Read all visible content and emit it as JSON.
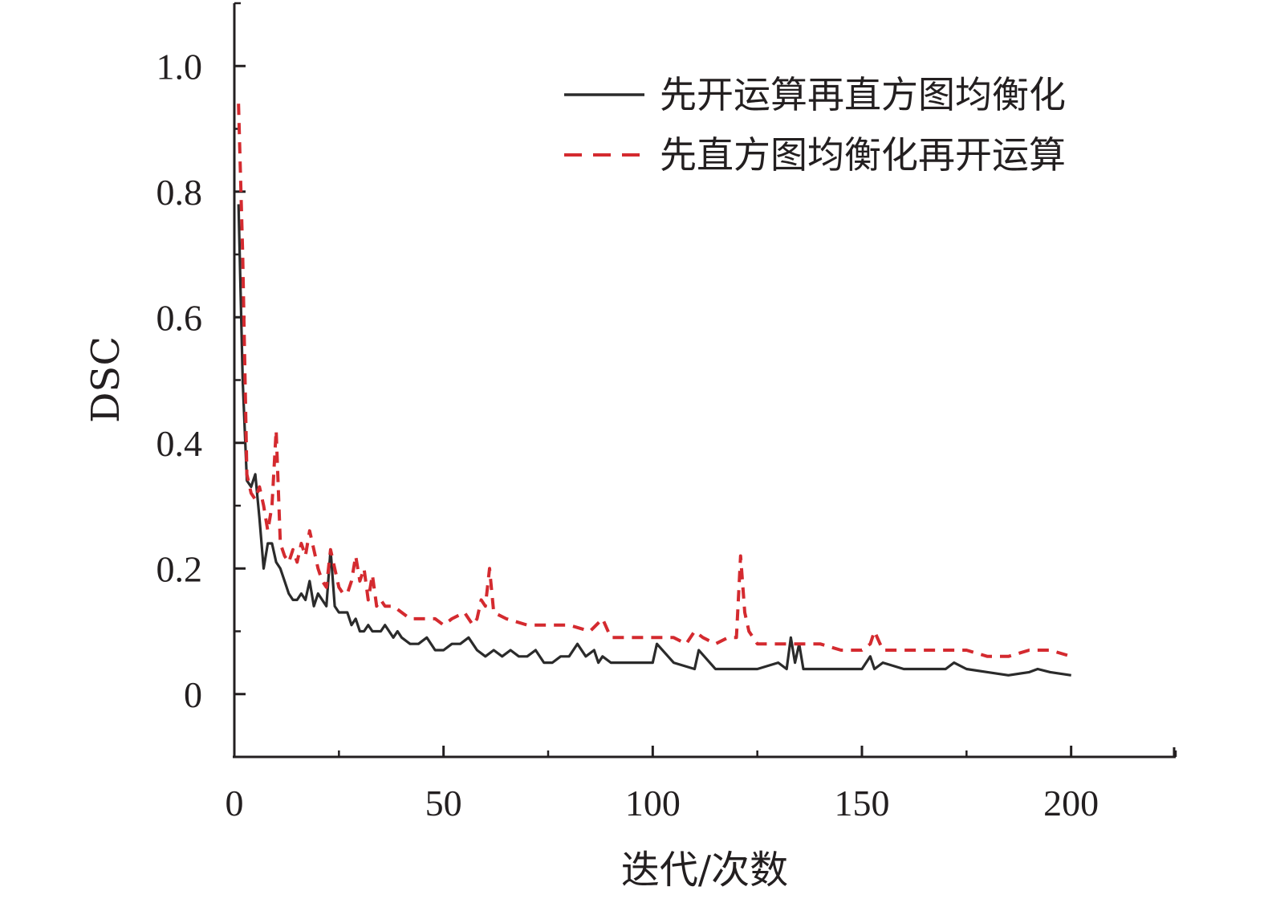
{
  "chart_data": {
    "type": "line",
    "title": "",
    "xlabel": "迭代/次数",
    "ylabel": "DSC",
    "xlim": [
      0,
      225
    ],
    "ylim": [
      -0.1,
      1.1
    ],
    "x_ticks": [
      0,
      50,
      100,
      150,
      200
    ],
    "x_tick_labels": [
      "0",
      "50",
      "100",
      "150",
      "200"
    ],
    "y_ticks": [
      0,
      0.2,
      0.4,
      0.6,
      0.8,
      1.0
    ],
    "y_tick_labels": [
      "0",
      "0.2",
      "0.4",
      "0.6",
      "0.8",
      "1.0"
    ],
    "grid": false,
    "legend_position": "top-right",
    "series": [
      {
        "name": "先开运算再直方图均衡化",
        "style": "solid",
        "color": "#2b2b2b",
        "x": [
          1,
          2,
          3,
          4,
          5,
          6,
          7,
          8,
          9,
          10,
          11,
          12,
          13,
          14,
          15,
          16,
          17,
          18,
          19,
          20,
          21,
          22,
          23,
          24,
          25,
          26,
          27,
          28,
          29,
          30,
          31,
          32,
          33,
          34,
          35,
          36,
          37,
          38,
          39,
          40,
          42,
          44,
          46,
          48,
          50,
          52,
          54,
          56,
          58,
          60,
          62,
          64,
          66,
          68,
          70,
          72,
          74,
          76,
          78,
          80,
          82,
          84,
          86,
          87,
          88,
          90,
          95,
          100,
          101,
          105,
          110,
          111,
          115,
          120,
          125,
          130,
          132,
          133,
          134,
          135,
          136,
          140,
          145,
          150,
          152,
          153,
          155,
          160,
          165,
          170,
          172,
          175,
          180,
          185,
          190,
          192,
          195,
          200
        ],
        "y": [
          0.78,
          0.5,
          0.34,
          0.33,
          0.35,
          0.28,
          0.2,
          0.24,
          0.24,
          0.21,
          0.2,
          0.18,
          0.16,
          0.15,
          0.15,
          0.16,
          0.15,
          0.18,
          0.14,
          0.16,
          0.15,
          0.14,
          0.23,
          0.14,
          0.13,
          0.13,
          0.13,
          0.11,
          0.12,
          0.1,
          0.1,
          0.11,
          0.1,
          0.1,
          0.1,
          0.11,
          0.1,
          0.09,
          0.1,
          0.09,
          0.08,
          0.08,
          0.09,
          0.07,
          0.07,
          0.08,
          0.08,
          0.09,
          0.07,
          0.06,
          0.07,
          0.06,
          0.07,
          0.06,
          0.06,
          0.07,
          0.05,
          0.05,
          0.06,
          0.06,
          0.08,
          0.06,
          0.07,
          0.05,
          0.06,
          0.05,
          0.05,
          0.05,
          0.08,
          0.05,
          0.04,
          0.07,
          0.04,
          0.04,
          0.04,
          0.05,
          0.04,
          0.09,
          0.05,
          0.08,
          0.04,
          0.04,
          0.04,
          0.04,
          0.06,
          0.04,
          0.05,
          0.04,
          0.04,
          0.04,
          0.05,
          0.04,
          0.035,
          0.03,
          0.035,
          0.04,
          0.035,
          0.03
        ]
      },
      {
        "name": "先直方图均衡化再开运算",
        "style": "dashed",
        "color": "#d42a2f",
        "x": [
          1,
          2,
          3,
          4,
          5,
          6,
          7,
          8,
          9,
          10,
          11,
          12,
          13,
          14,
          15,
          16,
          17,
          18,
          19,
          20,
          21,
          22,
          23,
          24,
          25,
          26,
          27,
          28,
          29,
          30,
          31,
          32,
          33,
          34,
          35,
          36,
          38,
          40,
          42,
          45,
          48,
          50,
          52,
          55,
          57,
          58,
          59,
          60,
          61,
          62,
          65,
          70,
          75,
          80,
          85,
          88,
          90,
          95,
          100,
          105,
          108,
          110,
          112,
          115,
          118,
          120,
          121,
          122,
          123,
          125,
          130,
          135,
          140,
          145,
          150,
          152,
          153,
          155,
          160,
          165,
          170,
          175,
          180,
          185,
          190,
          195,
          200
        ],
        "y": [
          0.94,
          0.7,
          0.35,
          0.32,
          0.31,
          0.33,
          0.3,
          0.26,
          0.3,
          0.42,
          0.24,
          0.22,
          0.21,
          0.23,
          0.21,
          0.24,
          0.22,
          0.26,
          0.23,
          0.2,
          0.18,
          0.17,
          0.23,
          0.2,
          0.17,
          0.16,
          0.16,
          0.18,
          0.22,
          0.18,
          0.2,
          0.15,
          0.19,
          0.14,
          0.15,
          0.14,
          0.14,
          0.13,
          0.12,
          0.12,
          0.12,
          0.11,
          0.12,
          0.13,
          0.11,
          0.12,
          0.15,
          0.14,
          0.2,
          0.13,
          0.12,
          0.11,
          0.11,
          0.11,
          0.1,
          0.12,
          0.09,
          0.09,
          0.09,
          0.09,
          0.08,
          0.1,
          0.09,
          0.08,
          0.09,
          0.09,
          0.22,
          0.13,
          0.1,
          0.08,
          0.08,
          0.08,
          0.08,
          0.07,
          0.07,
          0.08,
          0.1,
          0.07,
          0.07,
          0.07,
          0.07,
          0.07,
          0.06,
          0.06,
          0.07,
          0.07,
          0.06
        ]
      }
    ]
  }
}
